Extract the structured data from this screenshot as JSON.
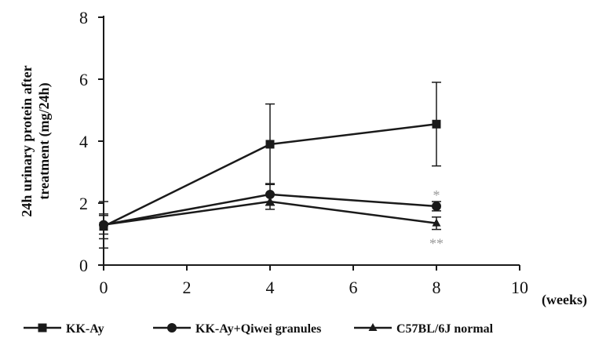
{
  "chart_data": {
    "type": "line",
    "ylabel_line1": "24h urinary protein after",
    "ylabel_line2": "treatment (mg/24h)",
    "xlabel": "(weeks)",
    "xlim": [
      0,
      10
    ],
    "ylim": [
      0,
      8
    ],
    "x_ticks": [
      "0",
      "2",
      "4",
      "6",
      "8",
      "10"
    ],
    "y_ticks": [
      "0",
      "2",
      "4",
      "6",
      "8"
    ],
    "x": [
      0,
      4,
      8
    ],
    "series": [
      {
        "name": "KK-Ay",
        "marker": "square",
        "values": [
          1.25,
          3.9,
          4.55
        ],
        "error": [
          0.4,
          1.3,
          1.35
        ]
      },
      {
        "name": "KK-Ay+Qiwei granules",
        "marker": "circle",
        "values": [
          1.3,
          2.28,
          1.9
        ],
        "error": [
          0.3,
          0.35,
          0.15
        ]
      },
      {
        "name": "C57BL/6J normal",
        "marker": "triangle",
        "values": [
          1.3,
          2.05,
          1.35
        ],
        "error": [
          0.75,
          0.25,
          0.2
        ]
      }
    ],
    "annotations": [
      {
        "text": "*",
        "x": 8,
        "series": "KK-Ay+Qiwei granules"
      },
      {
        "text": "**",
        "x": 8,
        "series": "C57BL/6J normal"
      }
    ],
    "line_color": "#1a1a1a",
    "legend_position": "bottom"
  }
}
